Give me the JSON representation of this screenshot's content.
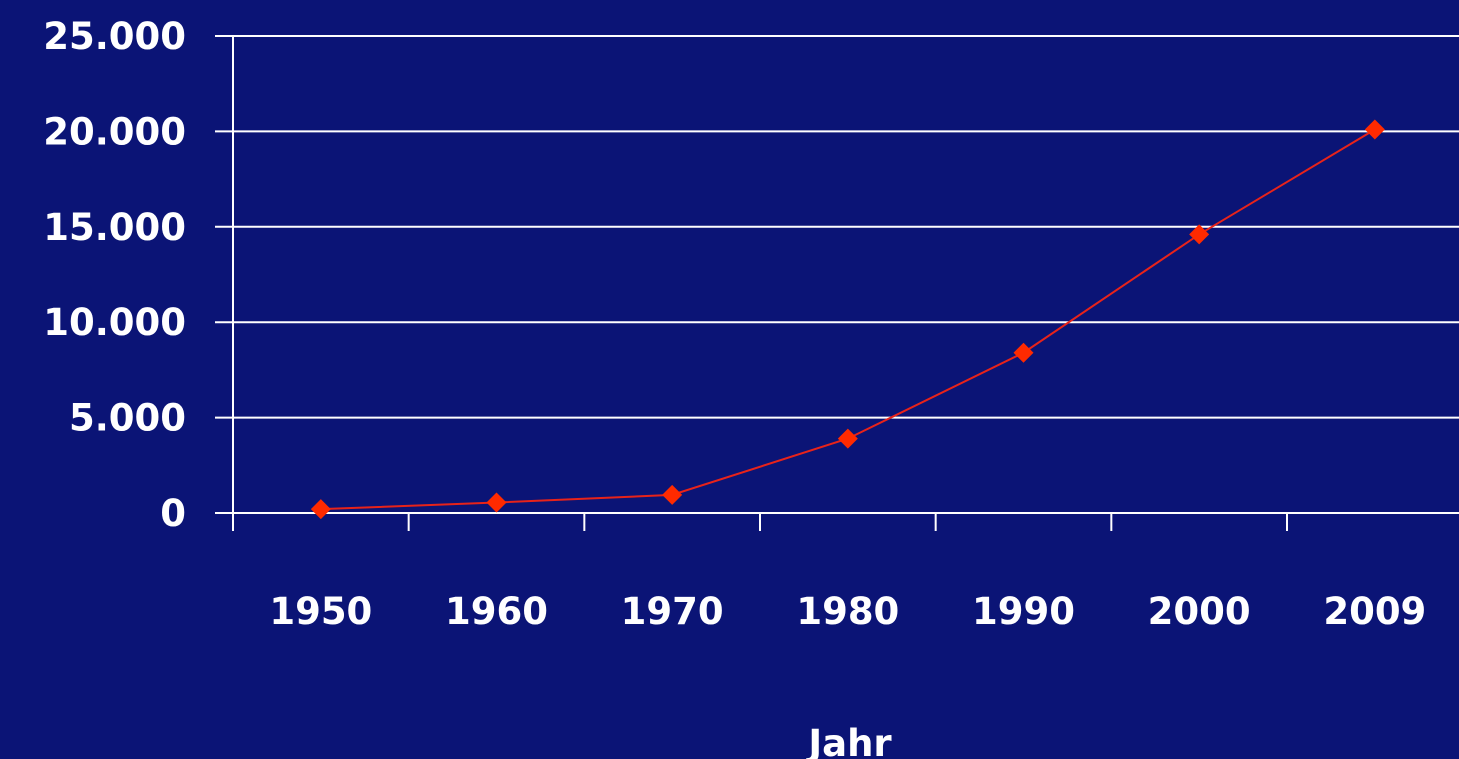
{
  "chart_data": {
    "type": "line",
    "title": "",
    "xlabel": "Jahr",
    "ylabel": "",
    "categories": [
      "1950",
      "1960",
      "1970",
      "1980",
      "1990",
      "2000",
      "2009"
    ],
    "series": [
      {
        "values": [
          200,
          550,
          950,
          3900,
          8400,
          14600,
          20100
        ],
        "marker": "diamond"
      }
    ],
    "ylim": [
      0,
      25000
    ],
    "yticks": [
      0,
      5000,
      10000,
      15000,
      20000,
      25000
    ],
    "ytick_labels": [
      "0",
      "5.000",
      "10.000",
      "15.000",
      "20.000",
      "25.000"
    ],
    "grid": true,
    "legend": "none"
  },
  "colors": {
    "background": "#0b1476",
    "series": "#ff2a00",
    "line": "#e8231a",
    "axis": "#ffffff",
    "grid": "#ffffff",
    "text": "#ffffff"
  }
}
